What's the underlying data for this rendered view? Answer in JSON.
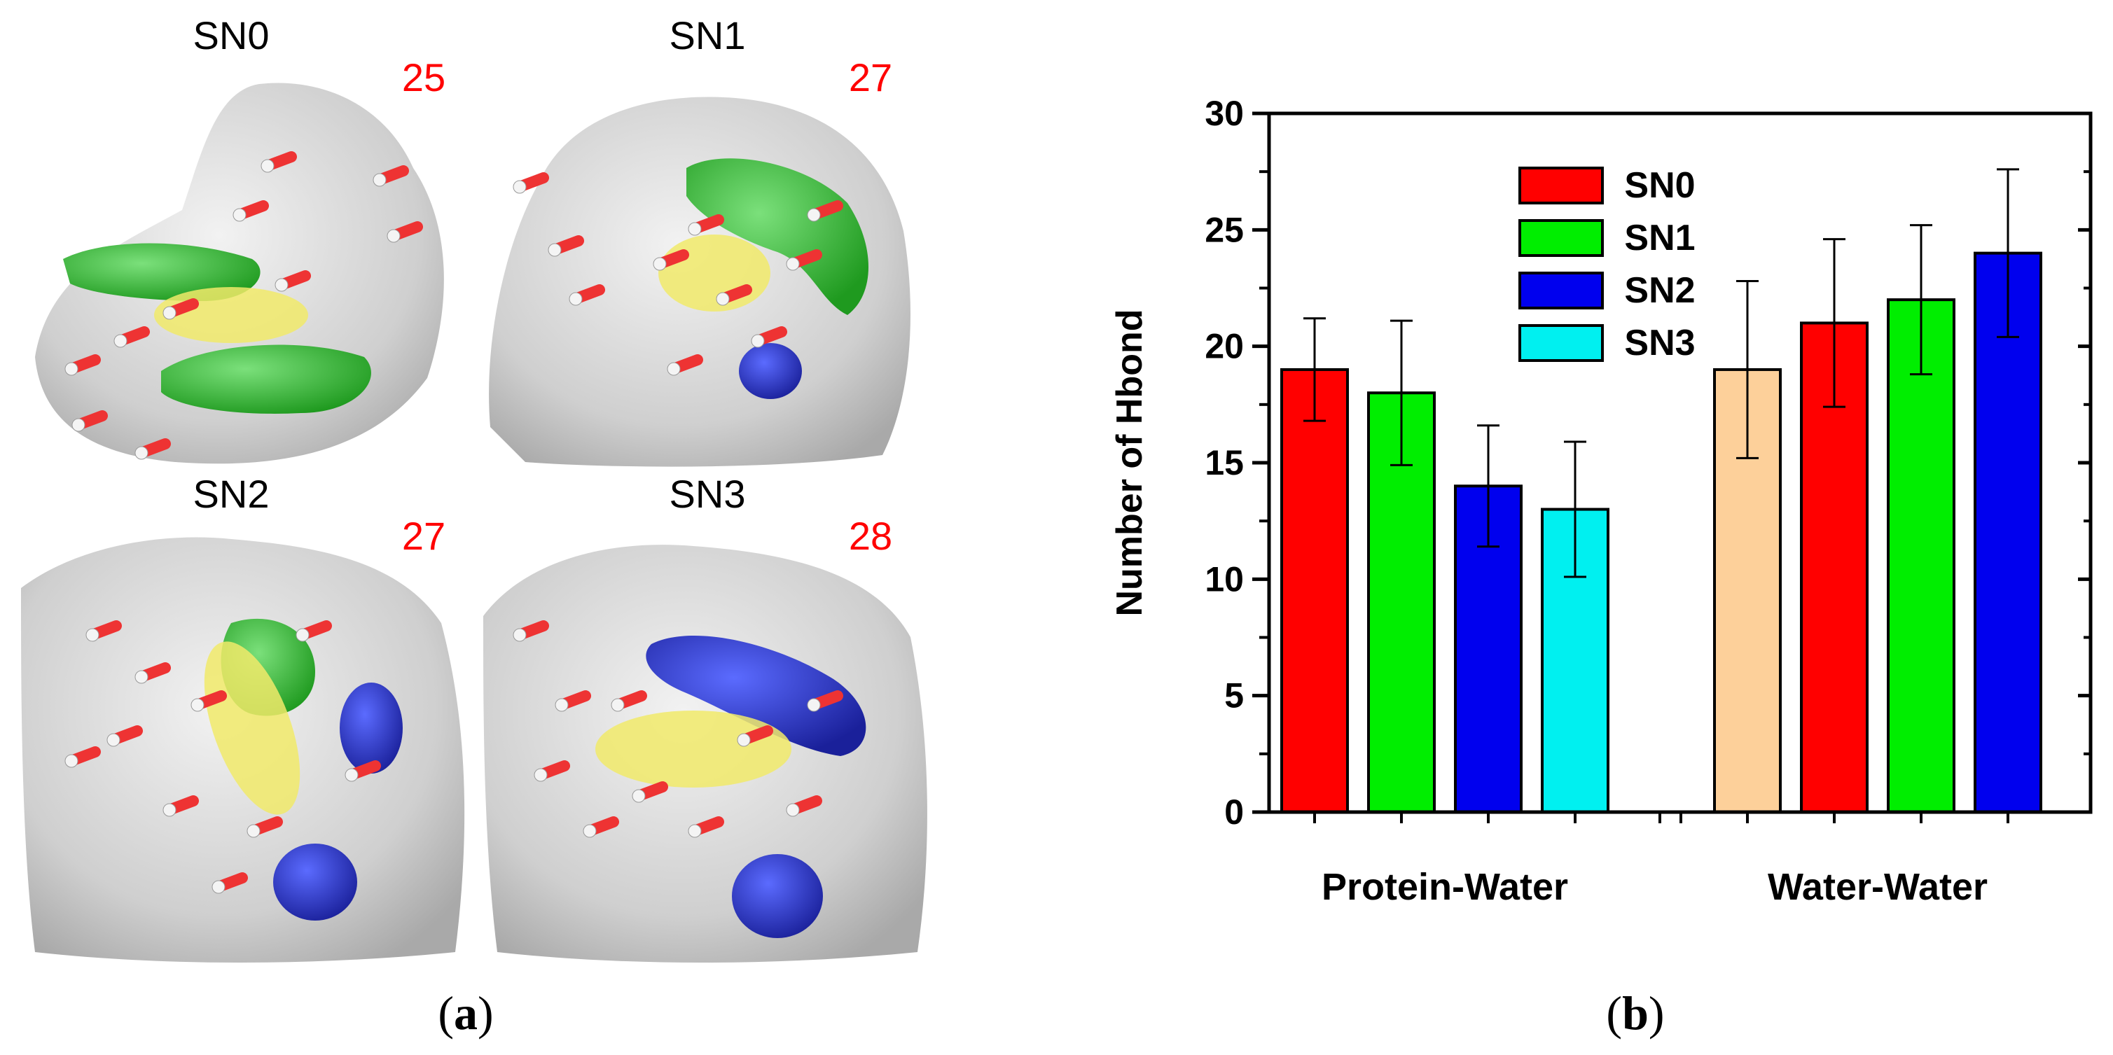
{
  "panel_a": {
    "label_open": "(",
    "label_letter": "a",
    "label_close": ")",
    "panels": [
      {
        "title": "SN0",
        "count": "25"
      },
      {
        "title": "SN1",
        "count": "27"
      },
      {
        "title": "SN2",
        "count": "27"
      },
      {
        "title": "SN3",
        "count": "28"
      }
    ],
    "colors": {
      "surface": "#d6d6d6",
      "ligand": "#e8e04a",
      "green_patch": "#3ec43e",
      "blue_patch": "#2a3acc",
      "count_text": "#ff0000"
    }
  },
  "panel_b": {
    "label_open": "(",
    "label_letter": "b",
    "label_close": ")"
  },
  "chart_data": {
    "type": "bar",
    "ylabel": "Number of Hbond",
    "ylim": [
      0,
      30
    ],
    "yticks": [
      0,
      5,
      10,
      15,
      20,
      25,
      30
    ],
    "groups": [
      {
        "label": "Protein-Water",
        "bars": [
          {
            "series": "SN0",
            "value": 19,
            "err": 2.2,
            "color": "#ff0000"
          },
          {
            "series": "SN1",
            "value": 18,
            "err": 3.1,
            "color": "#00ee00"
          },
          {
            "series": "SN2",
            "value": 14,
            "err": 2.6,
            "color": "#0000ee"
          },
          {
            "series": "SN3",
            "value": 13,
            "err": 2.9,
            "color": "#00f0f0"
          }
        ]
      },
      {
        "label": "Water-Water",
        "bars": [
          {
            "series": "",
            "value": 19,
            "err": 3.8,
            "color": "#fdd09a"
          },
          {
            "series": "SN0",
            "value": 21,
            "err": 3.6,
            "color": "#ff0000"
          },
          {
            "series": "SN1",
            "value": 22,
            "err": 3.2,
            "color": "#00ee00"
          },
          {
            "series": "SN2",
            "value": 24,
            "err": 3.6,
            "color": "#0000ee"
          }
        ]
      }
    ],
    "legend": {
      "position": "top-center",
      "entries": [
        {
          "name": "SN0",
          "color": "#ff0000"
        },
        {
          "name": "SN1",
          "color": "#00ee00"
        },
        {
          "name": "SN2",
          "color": "#0000ee"
        },
        {
          "name": "SN3",
          "color": "#00f0f0"
        }
      ]
    },
    "grid": false
  }
}
